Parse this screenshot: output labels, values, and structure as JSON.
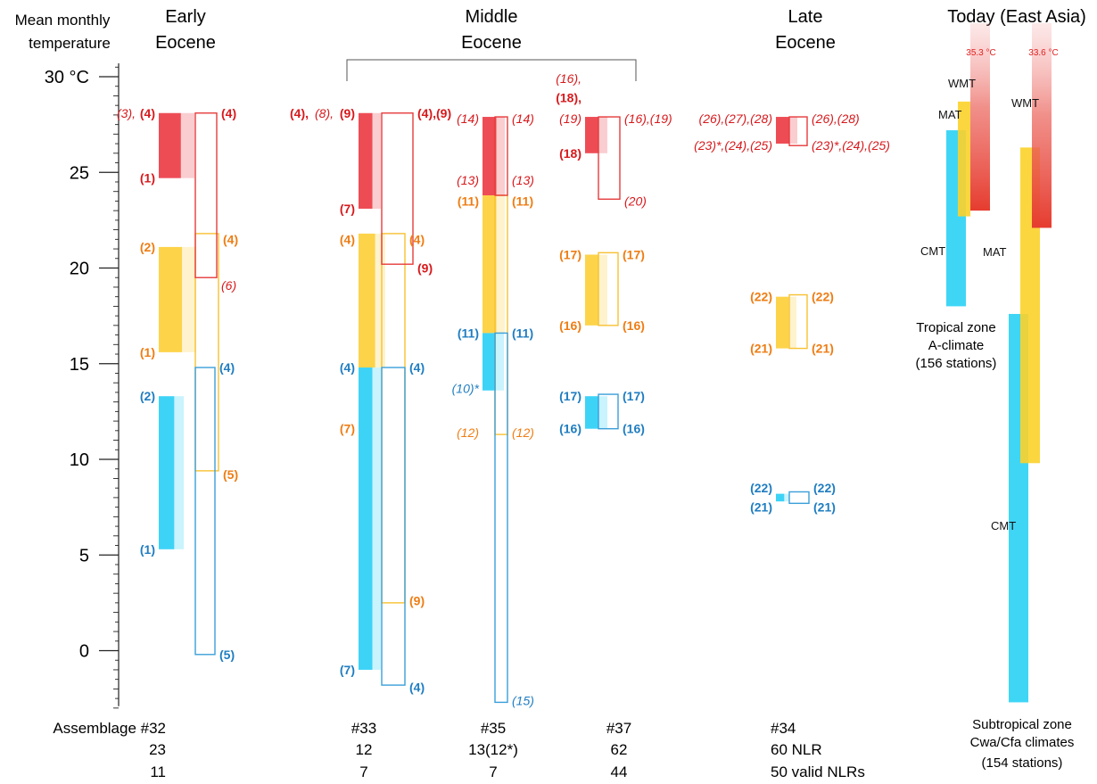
{
  "axis": {
    "title_line1": "Mean monthly",
    "title_line2": "temperature",
    "unit": "°C",
    "ticks": [
      30,
      25,
      20,
      15,
      10,
      5,
      0
    ],
    "tick_labels": [
      "30 °C",
      "25",
      "20",
      "15",
      "10",
      "5",
      "0"
    ],
    "ylim": [
      -3,
      31
    ]
  },
  "periods": {
    "early_l1": "Early",
    "early_l2": "Eocene",
    "middle_l1": "Middle",
    "middle_l2": "Eocene",
    "late_l1": "Late",
    "late_l2": "Eocene",
    "today": "Today (East Asia)"
  },
  "footer": {
    "c32_a": "Assemblage #32",
    "c32_b": "23",
    "c32_c": "11",
    "c33_a": "#33",
    "c33_b": "12",
    "c33_c": "7",
    "c35_a": "#35",
    "c35_b": "13(12*)",
    "c35_c": "7",
    "c37_a": "#37",
    "c37_b": "62",
    "c37_c": "44",
    "c34_a": "#34",
    "c34_b": "60 NLR",
    "c34_c": "50 valid NLRs"
  },
  "colors": {
    "warm_fill": "#ee4c55",
    "warm_outline": "#e63c3c",
    "mean_fill": "#fdd34a",
    "mean_outline": "#f7c131",
    "cold_fill": "#3dd3f7",
    "cold_outline": "#3a9fd9",
    "label_red": "#d7191c",
    "label_orange": "#ee7d14",
    "label_blue": "#1f7dc1",
    "today_red": "#e63c2f",
    "today_yellow": "#fcd12a",
    "today_cyan": "#35d4f5"
  },
  "chart_data": {
    "type": "range-bar",
    "ylabel": "Mean monthly temperature",
    "unit": "°C",
    "ylim": [
      -3,
      31
    ],
    "assemblages": [
      {
        "id": "#32",
        "bars": [
          {
            "kind": "filled",
            "color": "warm",
            "min": 24.7,
            "max": 28.1
          },
          {
            "kind": "outline",
            "color": "warm",
            "min": 19.5,
            "max": 28.1
          },
          {
            "kind": "filled",
            "color": "mean",
            "min": 15.6,
            "max": 21.1
          },
          {
            "kind": "outline",
            "color": "mean",
            "min": 9.4,
            "max": 21.8
          },
          {
            "kind": "filled",
            "color": "cold",
            "min": 5.3,
            "max": 13.3
          },
          {
            "kind": "outline",
            "color": "cold",
            "min": -0.2,
            "max": 14.8
          }
        ],
        "labels": [
          {
            "text": "(3),",
            "bold": false,
            "italic": true,
            "color": "red",
            "side": "left",
            "y": 28.1,
            "dx": -22
          },
          {
            "text": "(4)",
            "bold": true,
            "italic": false,
            "color": "red",
            "side": "left",
            "y": 28.1
          },
          {
            "text": "(4)",
            "bold": true,
            "italic": false,
            "color": "red",
            "side": "right",
            "y": 28.1
          },
          {
            "text": "(1)",
            "bold": true,
            "italic": false,
            "color": "red",
            "side": "left",
            "y": 24.7
          },
          {
            "text": "(6)",
            "bold": false,
            "italic": true,
            "color": "red",
            "side": "right",
            "y": 19.1
          },
          {
            "text": "(4)",
            "bold": true,
            "italic": false,
            "color": "orange",
            "side": "right",
            "y": 21.5
          },
          {
            "text": "(2)",
            "bold": true,
            "italic": false,
            "color": "orange",
            "side": "left",
            "y": 21.1
          },
          {
            "text": "(1)",
            "bold": true,
            "italic": false,
            "color": "orange",
            "side": "left",
            "y": 15.6
          },
          {
            "text": "(5)",
            "bold": true,
            "italic": false,
            "color": "orange",
            "side": "right",
            "y": 9.2
          },
          {
            "text": "(4)",
            "bold": true,
            "italic": false,
            "color": "blue",
            "side": "right",
            "y": 14.8
          },
          {
            "text": "(2)",
            "bold": true,
            "italic": false,
            "color": "blue",
            "side": "left",
            "y": 13.3
          },
          {
            "text": "(1)",
            "bold": true,
            "italic": false,
            "color": "blue",
            "side": "left",
            "y": 5.3
          },
          {
            "text": "(5)",
            "bold": true,
            "italic": false,
            "color": "blue",
            "side": "right",
            "y": -0.2
          }
        ]
      },
      {
        "id": "#33",
        "bars": [
          {
            "kind": "filled",
            "color": "warm",
            "min": 23.1,
            "max": 28.1
          },
          {
            "kind": "outline",
            "color": "warm",
            "min": 20.2,
            "max": 28.1
          },
          {
            "kind": "filled",
            "color": "mean",
            "min": 14.8,
            "max": 21.8
          },
          {
            "kind": "outline",
            "color": "mean",
            "min": 2.5,
            "max": 21.8
          },
          {
            "kind": "filled",
            "color": "cold",
            "min": -1.0,
            "max": 14.8
          },
          {
            "kind": "outline",
            "color": "cold",
            "min": -1.8,
            "max": 14.8
          }
        ],
        "labels": [
          {
            "text": "(4),",
            "bold": true,
            "italic": false,
            "color": "red",
            "side": "left",
            "y": 28.1,
            "dx": -52
          },
          {
            "text": "(8),",
            "bold": false,
            "italic": true,
            "color": "red",
            "side": "left",
            "y": 28.1,
            "dx": -24
          },
          {
            "text": "(9)",
            "bold": true,
            "italic": false,
            "color": "red",
            "side": "left",
            "y": 28.1
          },
          {
            "text": "(4),(9)",
            "bold": true,
            "italic": false,
            "color": "red",
            "side": "right",
            "y": 28.1
          },
          {
            "text": "(7)",
            "bold": true,
            "italic": false,
            "color": "red",
            "side": "left",
            "y": 23.1
          },
          {
            "text": "(9)",
            "bold": true,
            "italic": false,
            "color": "red",
            "side": "right",
            "y": 20.0
          },
          {
            "text": "(4)",
            "bold": true,
            "italic": false,
            "color": "orange",
            "side": "left",
            "y": 21.5
          },
          {
            "text": "(4)",
            "bold": true,
            "italic": false,
            "color": "orange",
            "side": "right",
            "y": 21.5
          },
          {
            "text": "(7)",
            "bold": true,
            "italic": false,
            "color": "orange",
            "side": "left",
            "y": 11.6
          },
          {
            "text": "(9)",
            "bold": true,
            "italic": false,
            "color": "orange",
            "side": "right",
            "y": 2.6
          },
          {
            "text": "(4)",
            "bold": true,
            "italic": false,
            "color": "blue",
            "side": "left",
            "y": 14.8
          },
          {
            "text": "(4)",
            "bold": true,
            "italic": false,
            "color": "blue",
            "side": "right",
            "y": 14.8
          },
          {
            "text": "(7)",
            "bold": true,
            "italic": false,
            "color": "blue",
            "side": "left",
            "y": -1.0
          },
          {
            "text": "(4)",
            "bold": true,
            "italic": false,
            "color": "blue",
            "side": "right",
            "y": -1.9
          }
        ]
      },
      {
        "id": "#35",
        "bars": [
          {
            "kind": "filled",
            "color": "warm",
            "min": 23.8,
            "max": 27.9
          },
          {
            "kind": "outline",
            "color": "warm",
            "min": 23.8,
            "max": 27.9
          },
          {
            "kind": "filled",
            "color": "mean",
            "min": 16.6,
            "max": 23.8
          },
          {
            "kind": "outline",
            "color": "mean",
            "min": 11.3,
            "max": 23.8
          },
          {
            "kind": "filled",
            "color": "cold",
            "min": 13.6,
            "max": 16.6
          },
          {
            "kind": "outline",
            "color": "cold",
            "min": -2.7,
            "max": 16.6
          }
        ],
        "labels": [
          {
            "text": "(14)",
            "bold": false,
            "italic": true,
            "color": "red",
            "side": "left",
            "y": 27.8
          },
          {
            "text": "(14)",
            "bold": false,
            "italic": true,
            "color": "red",
            "side": "right",
            "y": 27.8
          },
          {
            "text": "(13)",
            "bold": false,
            "italic": true,
            "color": "red",
            "side": "left",
            "y": 24.6
          },
          {
            "text": "(13)",
            "bold": false,
            "italic": true,
            "color": "red",
            "side": "right",
            "y": 24.6
          },
          {
            "text": "(11)",
            "bold": true,
            "italic": false,
            "color": "orange",
            "side": "left",
            "y": 23.5
          },
          {
            "text": "(11)",
            "bold": true,
            "italic": false,
            "color": "orange",
            "side": "right",
            "y": 23.5
          },
          {
            "text": "(12)",
            "bold": false,
            "italic": true,
            "color": "orange",
            "side": "left",
            "y": 11.4
          },
          {
            "text": "(12)",
            "bold": false,
            "italic": true,
            "color": "orange",
            "side": "right",
            "y": 11.4
          },
          {
            "text": "(11)",
            "bold": true,
            "italic": false,
            "color": "blue",
            "side": "left",
            "y": 16.6
          },
          {
            "text": "(11)",
            "bold": true,
            "italic": false,
            "color": "blue",
            "side": "right",
            "y": 16.6
          },
          {
            "text": "(10)*",
            "bold": false,
            "italic": true,
            "color": "blue",
            "side": "left",
            "y": 13.7
          },
          {
            "text": "(15)",
            "bold": false,
            "italic": true,
            "color": "blue",
            "side": "right",
            "y": -2.6
          }
        ]
      },
      {
        "id": "#37",
        "bars": [
          {
            "kind": "filled",
            "color": "warm",
            "min": 26.0,
            "max": 27.9
          },
          {
            "kind": "outline",
            "color": "warm",
            "min": 23.6,
            "max": 27.9
          },
          {
            "kind": "filled",
            "color": "mean",
            "min": 17.0,
            "max": 20.7
          },
          {
            "kind": "outline",
            "color": "mean",
            "min": 17.0,
            "max": 20.8
          },
          {
            "kind": "filled",
            "color": "cold",
            "min": 11.6,
            "max": 13.3
          },
          {
            "kind": "outline",
            "color": "cold",
            "min": 11.6,
            "max": 13.4
          }
        ],
        "labels": [
          {
            "text": "(16),",
            "bold": false,
            "italic": true,
            "color": "red",
            "side": "left",
            "y": 29.9
          },
          {
            "text": "(18),",
            "bold": true,
            "italic": false,
            "color": "red",
            "side": "left",
            "y": 28.9
          },
          {
            "text": "(19)",
            "bold": false,
            "italic": true,
            "color": "red",
            "side": "left",
            "y": 27.8
          },
          {
            "text": "(16),(19)",
            "bold": false,
            "italic": true,
            "color": "red",
            "side": "right",
            "y": 27.8
          },
          {
            "text": "(18)",
            "bold": true,
            "italic": false,
            "color": "red",
            "side": "left",
            "y": 26.0
          },
          {
            "text": "(20)",
            "bold": false,
            "italic": true,
            "color": "red",
            "side": "right",
            "y": 23.5
          },
          {
            "text": "(17)",
            "bold": true,
            "italic": false,
            "color": "orange",
            "side": "left",
            "y": 20.7
          },
          {
            "text": "(17)",
            "bold": true,
            "italic": false,
            "color": "orange",
            "side": "right",
            "y": 20.7
          },
          {
            "text": "(16)",
            "bold": true,
            "italic": false,
            "color": "orange",
            "side": "left",
            "y": 17.0
          },
          {
            "text": "(16)",
            "bold": true,
            "italic": false,
            "color": "orange",
            "side": "right",
            "y": 17.0
          },
          {
            "text": "(17)",
            "bold": true,
            "italic": false,
            "color": "blue",
            "side": "left",
            "y": 13.3
          },
          {
            "text": "(17)",
            "bold": true,
            "italic": false,
            "color": "blue",
            "side": "right",
            "y": 13.3
          },
          {
            "text": "(16)",
            "bold": true,
            "italic": false,
            "color": "blue",
            "side": "left",
            "y": 11.6
          },
          {
            "text": "(16)",
            "bold": true,
            "italic": false,
            "color": "blue",
            "side": "right",
            "y": 11.6
          }
        ]
      },
      {
        "id": "#34",
        "bars": [
          {
            "kind": "filled",
            "color": "warm",
            "min": 26.5,
            "max": 27.9
          },
          {
            "kind": "outline",
            "color": "warm",
            "min": 26.4,
            "max": 27.9
          },
          {
            "kind": "filled",
            "color": "mean",
            "min": 15.8,
            "max": 18.5
          },
          {
            "kind": "outline",
            "color": "mean",
            "min": 15.8,
            "max": 18.6
          },
          {
            "kind": "filled",
            "color": "cold",
            "min": 7.8,
            "max": 8.2
          },
          {
            "kind": "outline",
            "color": "cold",
            "min": 7.7,
            "max": 8.3
          }
        ],
        "labels": [
          {
            "text": "(26),(27),(28)",
            "bold": false,
            "italic": true,
            "color": "red",
            "side": "left",
            "y": 27.8
          },
          {
            "text": "(26),(28)",
            "bold": false,
            "italic": true,
            "color": "red",
            "side": "right",
            "y": 27.8
          },
          {
            "text": "(23)*,(24),(25)",
            "bold": false,
            "italic": true,
            "color": "red",
            "side": "left",
            "y": 26.4
          },
          {
            "text": "(23)*,(24),(25)",
            "bold": false,
            "italic": true,
            "color": "red",
            "side": "right",
            "y": 26.4
          },
          {
            "text": "(22)",
            "bold": true,
            "italic": false,
            "color": "orange",
            "side": "left",
            "y": 18.5
          },
          {
            "text": "(22)",
            "bold": true,
            "italic": false,
            "color": "orange",
            "side": "right",
            "y": 18.5
          },
          {
            "text": "(21)",
            "bold": true,
            "italic": false,
            "color": "orange",
            "side": "left",
            "y": 15.8
          },
          {
            "text": "(21)",
            "bold": true,
            "italic": false,
            "color": "orange",
            "side": "right",
            "y": 15.8
          },
          {
            "text": "(22)",
            "bold": true,
            "italic": false,
            "color": "blue",
            "side": "left",
            "y": 8.5
          },
          {
            "text": "(22)",
            "bold": true,
            "italic": false,
            "color": "blue",
            "side": "right",
            "y": 8.5
          },
          {
            "text": "(21)",
            "bold": true,
            "italic": false,
            "color": "blue",
            "side": "left",
            "y": 7.5
          },
          {
            "text": "(21)",
            "bold": true,
            "italic": false,
            "color": "blue",
            "side": "right",
            "y": 7.5
          }
        ]
      }
    ],
    "today": [
      {
        "zone": "Tropical zone",
        "climate": "A-climate",
        "stations": "(156 stations)",
        "bars": [
          {
            "name": "CMT",
            "min": 18.0,
            "max": 27.2,
            "color": "cyan"
          },
          {
            "name": "MAT",
            "min": 22.7,
            "max": 28.7,
            "color": "yellow"
          },
          {
            "name": "WMT",
            "min": 23.0,
            "max": 32.8,
            "color": "red"
          }
        ],
        "max_label": "35.3 °C"
      },
      {
        "zone": "Subtropical zone",
        "climate": "Cwa/Cfa climates",
        "stations": "(154 stations)",
        "bars": [
          {
            "name": "CMT",
            "min": -2.7,
            "max": 17.6,
            "color": "cyan"
          },
          {
            "name": "MAT",
            "min": 9.8,
            "max": 26.3,
            "color": "yellow"
          },
          {
            "name": "WMT",
            "min": 22.1,
            "max": 32.8,
            "color": "red"
          }
        ],
        "max_label": "33.6 °C"
      }
    ]
  }
}
